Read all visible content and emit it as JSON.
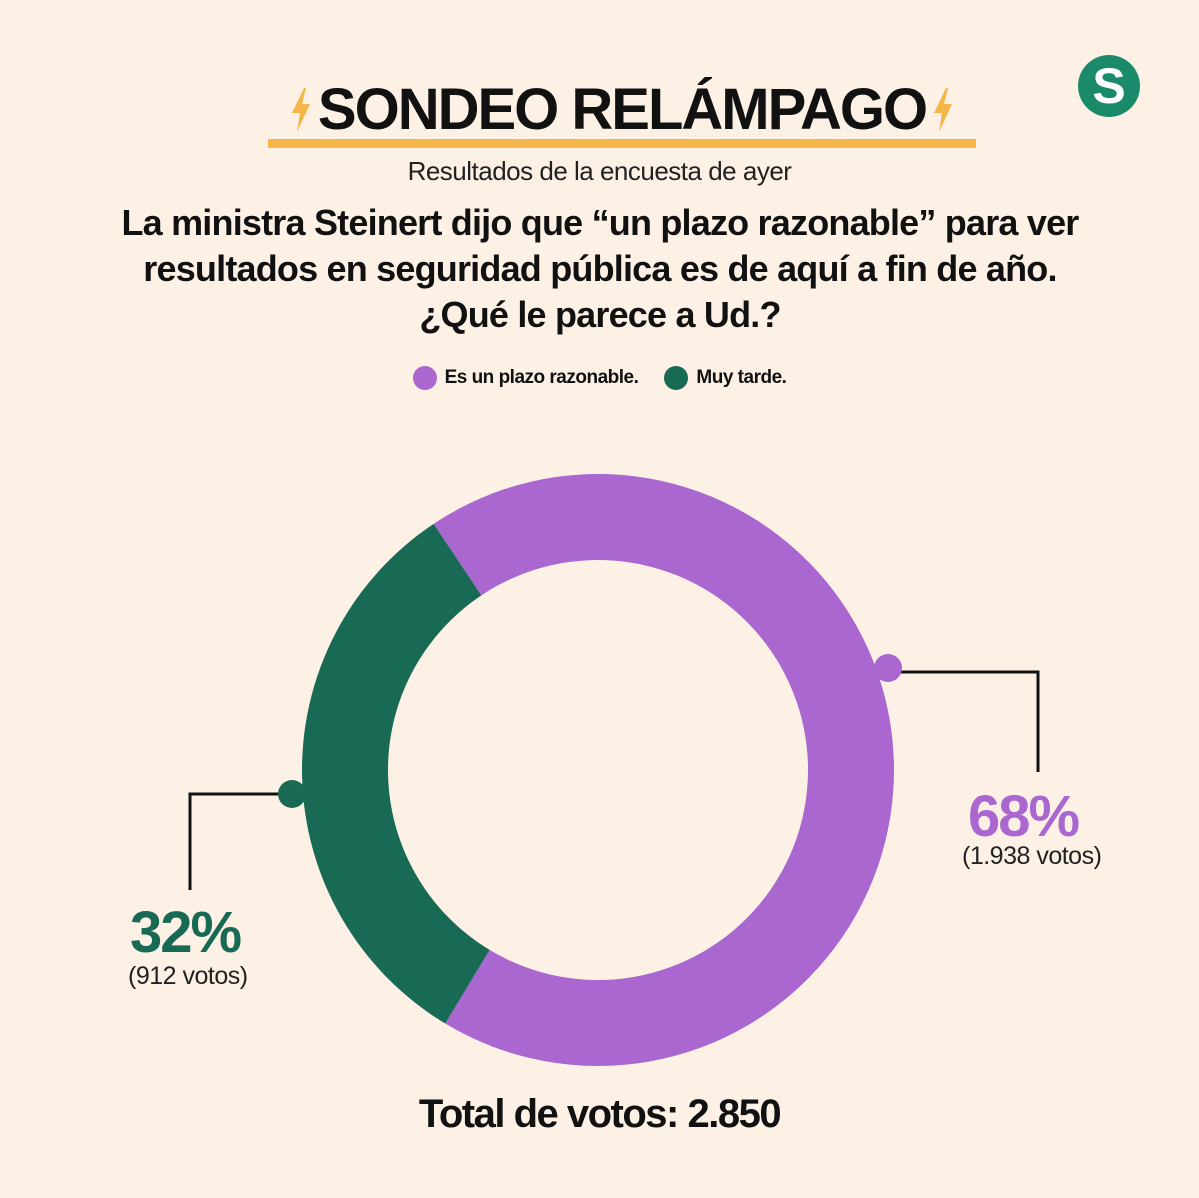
{
  "header": {
    "title": "SONDEO RELÁMPAGO",
    "accent_color": "#f5b649",
    "icon": "lightning-bolt-icon"
  },
  "logo": {
    "letter": "S",
    "color": "#1a8a6a"
  },
  "subtitle": "Resultados de la encuesta de ayer",
  "question": "La ministra Steinert dijo que “un plazo razonable” para ver resultados en seguridad pública es de aquí a fin de año. ¿Qué le parece a Ud.?",
  "chart_data": {
    "type": "pie",
    "donut": true,
    "legend_position": "top-center",
    "categories": [
      "Es un plazo razonable.",
      "Muy tarde."
    ],
    "values": [
      68,
      32
    ],
    "votes": [
      1938,
      912
    ],
    "colors": [
      "#a967cf",
      "#186a54"
    ],
    "labels": [
      {
        "percent": "68%",
        "votes": "(1.938 votos)"
      },
      {
        "percent": "32%",
        "votes": "(912 votos)"
      }
    ],
    "total_label": "Total de votos: 2.850"
  }
}
